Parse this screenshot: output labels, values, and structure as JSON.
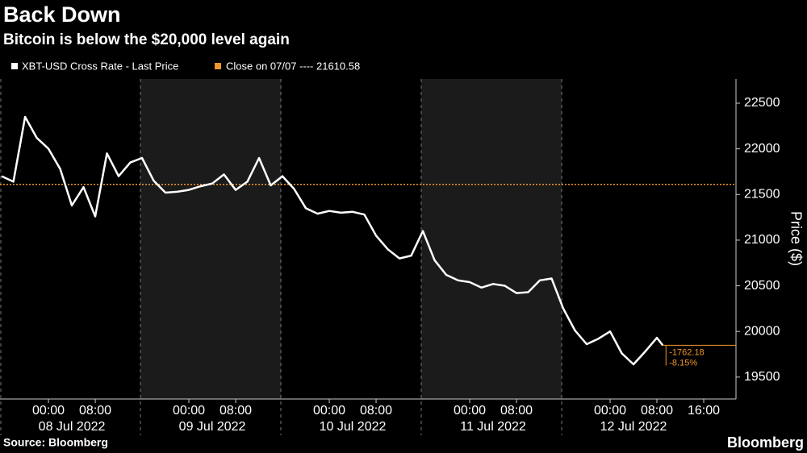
{
  "chart_data": {
    "type": "line",
    "title": "Back Down",
    "subtitle": "Bitcoin is below the $20,000 level again",
    "y_label": "Price ($)",
    "source": "Source: Bloomberg",
    "brand": "Bloomberg",
    "x": [
      "2022-07-07T16:00",
      "2022-07-07T18:00",
      "2022-07-07T20:00",
      "2022-07-07T22:00",
      "2022-07-08T00:00",
      "2022-07-08T02:00",
      "2022-07-08T04:00",
      "2022-07-08T06:00",
      "2022-07-08T08:00",
      "2022-07-08T10:00",
      "2022-07-08T12:00",
      "2022-07-08T14:00",
      "2022-07-08T16:00",
      "2022-07-08T18:00",
      "2022-07-08T20:00",
      "2022-07-08T22:00",
      "2022-07-09T00:00",
      "2022-07-09T02:00",
      "2022-07-09T04:00",
      "2022-07-09T06:00",
      "2022-07-09T08:00",
      "2022-07-09T10:00",
      "2022-07-09T12:00",
      "2022-07-09T14:00",
      "2022-07-09T16:00",
      "2022-07-09T18:00",
      "2022-07-09T20:00",
      "2022-07-09T22:00",
      "2022-07-10T00:00",
      "2022-07-10T02:00",
      "2022-07-10T04:00",
      "2022-07-10T06:00",
      "2022-07-10T08:00",
      "2022-07-10T10:00",
      "2022-07-10T12:00",
      "2022-07-10T14:00",
      "2022-07-10T16:00",
      "2022-07-10T18:00",
      "2022-07-10T20:00",
      "2022-07-10T22:00",
      "2022-07-11T00:00",
      "2022-07-11T02:00",
      "2022-07-11T04:00",
      "2022-07-11T06:00",
      "2022-07-11T08:00",
      "2022-07-11T10:00",
      "2022-07-11T12:00",
      "2022-07-11T14:00",
      "2022-07-11T16:00",
      "2022-07-11T18:00",
      "2022-07-11T20:00",
      "2022-07-11T22:00",
      "2022-07-12T00:00",
      "2022-07-12T02:00",
      "2022-07-12T04:00",
      "2022-07-12T06:00",
      "2022-07-12T08:00",
      "2022-07-12T09:00"
    ],
    "series": [
      {
        "name": "XBT-USD Cross Rate - Last Price",
        "color": "#ffffff",
        "values": [
          21700,
          21640,
          22350,
          22120,
          22000,
          21780,
          21380,
          21580,
          21260,
          21950,
          21700,
          21850,
          21900,
          21650,
          21520,
          21530,
          21550,
          21590,
          21620,
          21720,
          21550,
          21640,
          21900,
          21600,
          21700,
          21560,
          21350,
          21290,
          21320,
          21300,
          21310,
          21280,
          21050,
          20900,
          20800,
          20830,
          21100,
          20780,
          20620,
          20560,
          20540,
          20480,
          20520,
          20500,
          20420,
          20430,
          20560,
          20580,
          20250,
          20010,
          19860,
          19920,
          20000,
          19760,
          19640,
          19780,
          19930,
          19848
        ]
      }
    ],
    "reference_line": {
      "name": "Close on 07/07 ---- 21610.58",
      "value": 21610.58,
      "color": "#f0962a"
    },
    "annotations": [
      "-1762.18",
      "-8.15%"
    ],
    "ylim": [
      19260,
      22765
    ],
    "yticks": [
      19500,
      20000,
      20500,
      21000,
      21500,
      22000,
      22500
    ],
    "xlim": [
      "2022-07-07T15:43",
      "2022-07-12T21:31"
    ],
    "xticks": [
      {
        "value": "2022-07-08T00:00",
        "label": "00:00"
      },
      {
        "value": "2022-07-08T08:00",
        "label": "08:00"
      },
      {
        "value": "2022-07-09T00:00",
        "label": "00:00"
      },
      {
        "value": "2022-07-09T08:00",
        "label": "08:00"
      },
      {
        "value": "2022-07-10T00:00",
        "label": "00:00"
      },
      {
        "value": "2022-07-10T08:00",
        "label": "08:00"
      },
      {
        "value": "2022-07-11T00:00",
        "label": "00:00"
      },
      {
        "value": "2022-07-11T08:00",
        "label": "08:00"
      },
      {
        "value": "2022-07-12T00:00",
        "label": "00:00"
      },
      {
        "value": "2022-07-12T08:00",
        "label": "08:00"
      },
      {
        "value": "2022-07-12T16:00",
        "label": "16:00"
      }
    ],
    "xtick_groups": [
      {
        "value": "2022-07-08T04:00",
        "label": "08 Jul 2022"
      },
      {
        "value": "2022-07-09T04:00",
        "label": "09 Jul 2022"
      },
      {
        "value": "2022-07-10T04:00",
        "label": "10 Jul 2022"
      },
      {
        "value": "2022-07-11T04:00",
        "label": "11 Jul 2022"
      },
      {
        "value": "2022-07-12T04:00",
        "label": "12 Jul 2022"
      }
    ]
  }
}
